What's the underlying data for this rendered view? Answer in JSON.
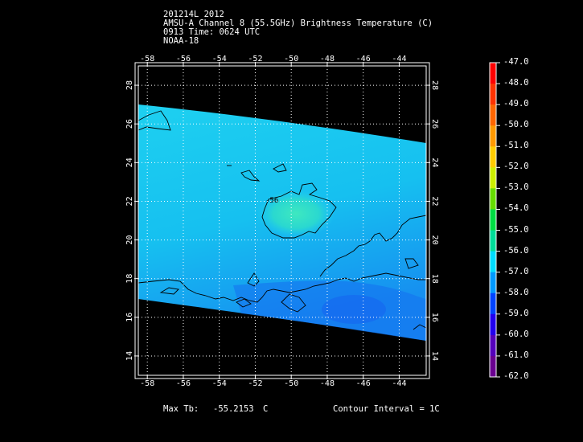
{
  "header": {
    "line1": "201214L 2012",
    "line2": "AMSU-A Channel 8 (55.5GHz) Brightness Temperature (C)",
    "line3": "0913 Time: 0624 UTC",
    "line4": "NOAA-18"
  },
  "map": {
    "lon_ticks": [
      -58,
      -56,
      -54,
      -52,
      -50,
      -48,
      -46,
      -44
    ],
    "lat_ticks": [
      14,
      16,
      18,
      20,
      22,
      24,
      26,
      28
    ],
    "lon_labels": [
      "-58",
      "-56",
      "-54",
      "-52",
      "-50",
      "-48",
      "-46",
      "-44"
    ],
    "lat_labels": [
      "14",
      "16",
      "18",
      "20",
      "22",
      "24",
      "26",
      "28"
    ],
    "lon_range": [
      -58.5,
      -42.5
    ],
    "lat_range": [
      13,
      29
    ],
    "contour_label": "-56",
    "swath_color": "#18c8f2",
    "warm_core_color": "#3ee8c0",
    "outside_color": "#000000",
    "grid_color": "#ffffff"
  },
  "colorbar": {
    "labels": [
      "-47.0",
      "-48.0",
      "-49.0",
      "-50.0",
      "-51.0",
      "-52.0",
      "-53.0",
      "-54.0",
      "-55.0",
      "-56.0",
      "-57.0",
      "-58.0",
      "-59.0",
      "-60.0",
      "-61.0",
      "-62.0"
    ],
    "colors": [
      "#ff0000",
      "#ff3300",
      "#ff6600",
      "#ff9900",
      "#ffcc00",
      "#ccee00",
      "#66dd00",
      "#00dd44",
      "#00dd99",
      "#00ddff",
      "#0099ff",
      "#0044ff",
      "#2200ee",
      "#5500bb",
      "#6a0090",
      "#550066"
    ]
  },
  "footer": {
    "max_label": "Max Tb:",
    "max_value": "-55.2153",
    "max_unit": "C",
    "contour_text": "Contour Interval = 1C"
  }
}
